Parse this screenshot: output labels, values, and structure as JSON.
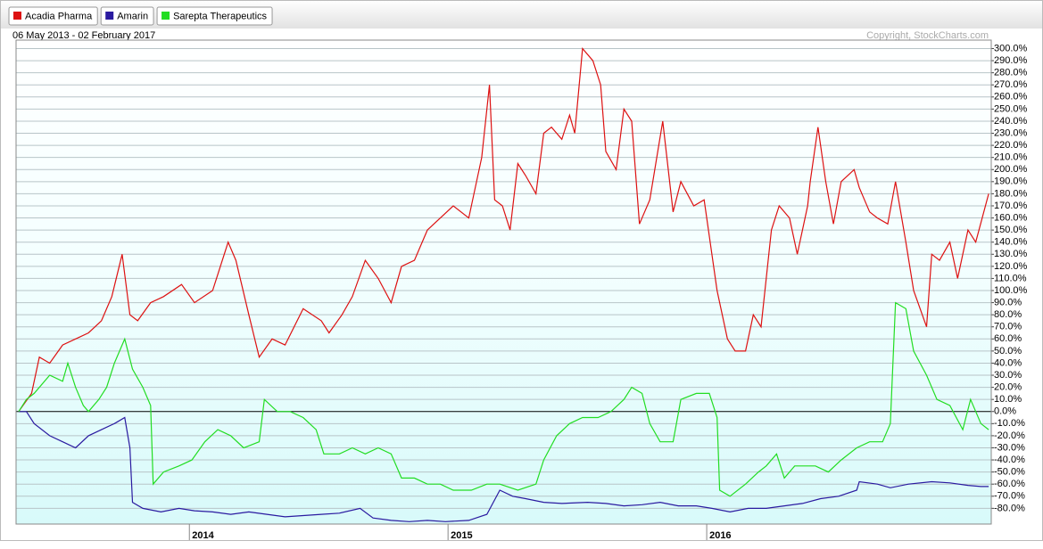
{
  "chart_data": {
    "type": "line",
    "subtitle": "06 May 2013 - 02 February 2017",
    "credit": "Copyright, StockCharts.com",
    "xlim": [
      2013.33,
      2017.1
    ],
    "xticks": [
      2014,
      2015,
      2016
    ],
    "ylim": [
      -93,
      307
    ],
    "yticks": [
      {
        "value": -80,
        "label": "-80.0%"
      },
      {
        "value": -70,
        "label": "-70.0%"
      },
      {
        "value": -60,
        "label": "-60.0%"
      },
      {
        "value": -50,
        "label": "-50.0%"
      },
      {
        "value": -40,
        "label": "-40.0%"
      },
      {
        "value": -30,
        "label": "-30.0%"
      },
      {
        "value": -20,
        "label": "-20.0%"
      },
      {
        "value": -10,
        "label": "-10.0%"
      },
      {
        "value": 0,
        "label": "0.0%"
      },
      {
        "value": 10,
        "label": "10.0%"
      },
      {
        "value": 20,
        "label": "20.0%"
      },
      {
        "value": 30,
        "label": "30.0%"
      },
      {
        "value": 40,
        "label": "40.0%"
      },
      {
        "value": 50,
        "label": "50.0%"
      },
      {
        "value": 60,
        "label": "60.0%"
      },
      {
        "value": 70,
        "label": "70.0%"
      },
      {
        "value": 80,
        "label": "80.0%"
      },
      {
        "value": 90,
        "label": "90.0%"
      },
      {
        "value": 100,
        "label": "100.0%"
      },
      {
        "value": 110,
        "label": "110.0%"
      },
      {
        "value": 120,
        "label": "120.0%"
      },
      {
        "value": 130,
        "label": "130.0%"
      },
      {
        "value": 140,
        "label": "140.0%"
      },
      {
        "value": 150,
        "label": "150.0%"
      },
      {
        "value": 160,
        "label": "160.0%"
      },
      {
        "value": 170,
        "label": "170.0%"
      },
      {
        "value": 180,
        "label": "180.0%"
      },
      {
        "value": 190,
        "label": "190.0%"
      },
      {
        "value": 200,
        "label": "200.0%"
      },
      {
        "value": 210,
        "label": "210.0%"
      },
      {
        "value": 220,
        "label": "220.0%"
      },
      {
        "value": 230,
        "label": "230.0%"
      },
      {
        "value": 240,
        "label": "240.0%"
      },
      {
        "value": 250,
        "label": "250.0%"
      },
      {
        "value": 260,
        "label": "260.0%"
      },
      {
        "value": 270,
        "label": "270.0%"
      },
      {
        "value": 280,
        "label": "280.0%"
      },
      {
        "value": 290,
        "label": "290.0%"
      },
      {
        "value": 300,
        "label": "300.0%"
      }
    ],
    "grid": true,
    "series": [
      {
        "name": "Acadia Pharma",
        "color": "#dd1111",
        "x": [
          2013.34,
          2013.39,
          2013.42,
          2013.46,
          2013.51,
          2013.56,
          2013.61,
          2013.66,
          2013.7,
          2013.74,
          2013.77,
          2013.8,
          2013.85,
          2013.9,
          2013.97,
          2014.02,
          2014.09,
          2014.15,
          2014.18,
          2014.23,
          2014.27,
          2014.32,
          2014.37,
          2014.44,
          2014.51,
          2014.54,
          2014.59,
          2014.63,
          2014.68,
          2014.73,
          2014.78,
          2014.82,
          2014.87,
          2014.92,
          2014.97,
          2015.02,
          2015.08,
          2015.13,
          2015.16,
          2015.18,
          2015.21,
          2015.24,
          2015.27,
          2015.3,
          2015.34,
          2015.37,
          2015.4,
          2015.44,
          2015.47,
          2015.49,
          2015.52,
          2015.56,
          2015.59,
          2015.61,
          2015.65,
          2015.68,
          2015.71,
          2015.74,
          2015.78,
          2015.83,
          2015.87,
          2015.9,
          2015.95,
          2015.99,
          2016.02,
          2016.04,
          2016.08,
          2016.11,
          2016.15,
          2016.18,
          2016.21,
          2016.25,
          2016.28,
          2016.32,
          2016.35,
          2016.39,
          2016.4,
          2016.43,
          2016.46,
          2016.49,
          2016.52,
          2016.57,
          2016.59,
          2016.63,
          2016.66,
          2016.7,
          2016.73,
          2016.77,
          2016.8,
          2016.85,
          2016.87,
          2016.9,
          2016.94,
          2016.97,
          2017.01,
          2017.04,
          2017.09
        ],
        "values": [
          0,
          15,
          45,
          40,
          55,
          60,
          65,
          75,
          95,
          130,
          80,
          75,
          90,
          95,
          105,
          90,
          100,
          140,
          125,
          80,
          45,
          60,
          55,
          85,
          75,
          65,
          80,
          95,
          125,
          110,
          90,
          120,
          125,
          150,
          160,
          170,
          160,
          210,
          270,
          175,
          170,
          150,
          205,
          195,
          180,
          230,
          235,
          225,
          245,
          230,
          300,
          290,
          270,
          215,
          200,
          250,
          240,
          155,
          175,
          240,
          165,
          190,
          170,
          175,
          130,
          100,
          60,
          50,
          50,
          80,
          70,
          150,
          170,
          160,
          130,
          170,
          190,
          235,
          190,
          155,
          190,
          200,
          185,
          165,
          160,
          155,
          190,
          140,
          100,
          70,
          130,
          125,
          140,
          110,
          150,
          140,
          180
        ]
      },
      {
        "name": "Amarin",
        "color": "#2a1aa0",
        "x": [
          2013.34,
          2013.37,
          2013.4,
          2013.46,
          2013.51,
          2013.56,
          2013.61,
          2013.66,
          2013.71,
          2013.75,
          2013.77,
          2013.78,
          2013.82,
          2013.89,
          2013.96,
          2014.02,
          2014.09,
          2014.16,
          2014.23,
          2014.3,
          2014.37,
          2014.44,
          2014.51,
          2014.58,
          2014.66,
          2014.71,
          2014.78,
          2014.85,
          2014.92,
          2014.99,
          2015.08,
          2015.15,
          2015.2,
          2015.25,
          2015.3,
          2015.37,
          2015.44,
          2015.54,
          2015.61,
          2015.68,
          2015.75,
          2015.82,
          2015.89,
          2015.96,
          2016.02,
          2016.09,
          2016.16,
          2016.23,
          2016.3,
          2016.37,
          2016.44,
          2016.51,
          2016.58,
          2016.59,
          2016.66,
          2016.71,
          2016.78,
          2016.87,
          2016.94,
          2017.01,
          2017.06,
          2017.09
        ],
        "values": [
          0,
          0,
          -10,
          -20,
          -25,
          -30,
          -20,
          -15,
          -10,
          -5,
          -30,
          -75,
          -80,
          -83,
          -80,
          -82,
          -83,
          -85,
          -83,
          -85,
          -87,
          -86,
          -85,
          -84,
          -80,
          -88,
          -90,
          -91,
          -90,
          -91,
          -90,
          -85,
          -65,
          -70,
          -72,
          -75,
          -76,
          -75,
          -76,
          -78,
          -77,
          -75,
          -78,
          -78,
          -80,
          -83,
          -80,
          -80,
          -78,
          -76,
          -72,
          -70,
          -65,
          -58,
          -60,
          -63,
          -60,
          -58,
          -59,
          -61,
          -62,
          -62
        ]
      },
      {
        "name": "Sarepta Therapeutics",
        "color": "#22dd22",
        "x": [
          2013.34,
          2013.37,
          2013.4,
          2013.46,
          2013.51,
          2013.53,
          2013.56,
          2013.59,
          2013.61,
          2013.65,
          2013.68,
          2013.71,
          2013.75,
          2013.78,
          2013.82,
          2013.85,
          2013.86,
          2013.9,
          2013.96,
          2014.01,
          2014.06,
          2014.11,
          2014.16,
          2014.21,
          2014.27,
          2014.29,
          2014.34,
          2014.39,
          2014.44,
          2014.49,
          2014.52,
          2014.58,
          2014.63,
          2014.68,
          2014.73,
          2014.78,
          2014.82,
          2014.87,
          2014.92,
          2014.97,
          2015.02,
          2015.09,
          2015.15,
          2015.2,
          2015.27,
          2015.34,
          2015.37,
          2015.42,
          2015.47,
          2015.52,
          2015.58,
          2015.63,
          2015.68,
          2015.71,
          2015.75,
          2015.78,
          2015.82,
          2015.87,
          2015.9,
          2015.96,
          2016.01,
          2016.04,
          2016.05,
          2016.09,
          2016.15,
          2016.2,
          2016.23,
          2016.27,
          2016.3,
          2016.34,
          2016.37,
          2016.42,
          2016.47,
          2016.52,
          2016.58,
          2016.63,
          2016.68,
          2016.71,
          2016.73,
          2016.77,
          2016.8,
          2016.85,
          2016.89,
          2016.94,
          2016.99,
          2017.02,
          2017.06,
          2017.09
        ],
        "values": [
          0,
          10,
          15,
          30,
          25,
          40,
          20,
          5,
          0,
          10,
          20,
          40,
          60,
          35,
          20,
          5,
          -60,
          -50,
          -45,
          -40,
          -25,
          -15,
          -20,
          -30,
          -25,
          10,
          0,
          0,
          -5,
          -15,
          -35,
          -35,
          -30,
          -35,
          -30,
          -35,
          -55,
          -55,
          -60,
          -60,
          -65,
          -65,
          -60,
          -60,
          -65,
          -60,
          -40,
          -20,
          -10,
          -5,
          -5,
          0,
          10,
          20,
          15,
          -10,
          -25,
          -25,
          10,
          15,
          15,
          -5,
          -65,
          -70,
          -60,
          -50,
          -45,
          -35,
          -55,
          -45,
          -45,
          -45,
          -50,
          -40,
          -30,
          -25,
          -25,
          -10,
          90,
          85,
          50,
          30,
          10,
          5,
          -15,
          10,
          -10,
          -15
        ]
      }
    ]
  }
}
